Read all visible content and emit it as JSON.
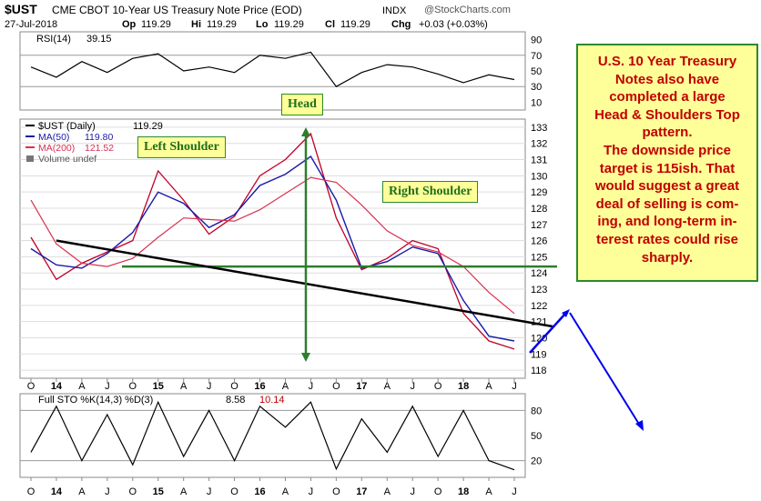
{
  "header": {
    "symbol": "$UST",
    "title": "CME CBOT 10-Year US Treasury Note Price (EOD)",
    "index": "INDX",
    "brand": "@StockCharts.com",
    "date": "27-Jul-2018",
    "op_label": "Op",
    "op": "119.29",
    "hi_label": "Hi",
    "hi": "119.29",
    "lo_label": "Lo",
    "lo": "119.29",
    "cl_label": "Cl",
    "cl": "119.29",
    "chg_label": "Chg",
    "chg": "+0.03 (+0.03%)"
  },
  "rsi_panel": {
    "label": "RSI(14)",
    "value": "39.15",
    "ticks": [
      "90",
      "70",
      "50",
      "30",
      "10"
    ]
  },
  "main_panel": {
    "legend_price": "$UST (Daily)",
    "legend_price_value": "119.29",
    "legend_ma50": "MA(50)",
    "legend_ma50_value": "119.80",
    "legend_ma200": "MA(200)",
    "legend_ma200_value": "121.52",
    "legend_volume": "Volume undef",
    "y_ticks": [
      "133",
      "132",
      "131",
      "130",
      "129",
      "128",
      "127",
      "126",
      "125",
      "124",
      "123",
      "122",
      "121",
      "120",
      "119",
      "118"
    ]
  },
  "sto_panel": {
    "label": "Full STO %K(14,3) %D(3)",
    "value_k": "8.58",
    "value_d": "10.14",
    "ticks": [
      "80",
      "50",
      "20"
    ]
  },
  "x_axis": [
    "O",
    "14",
    "A",
    "J",
    "O",
    "15",
    "A",
    "J",
    "O",
    "16",
    "A",
    "J",
    "O",
    "17",
    "A",
    "J",
    "O",
    "18",
    "A",
    "J"
  ],
  "annotations": {
    "head": "Head",
    "left_shoulder": "Left Shoulder",
    "right_shoulder": "Right Shoulder"
  },
  "note": {
    "lines": [
      "U.S. 10 Year Treasury",
      "Notes also have",
      "completed a large",
      "Head & Shoulders Top",
      "pattern.",
      "The downside price",
      "target is 115ish. That",
      "would suggest a great",
      "deal of selling is com-",
      "ing, and long-term in-",
      "terest rates could rise",
      "sharply."
    ]
  },
  "colors": {
    "price": "#c00028",
    "ma50": "#1a1aa8",
    "ma200": "#d83050",
    "neckline": "#000000",
    "support": "#2e7d2e",
    "head_arrow": "#2e7d2e",
    "projection": "#0000ee",
    "note_text": "#c00000",
    "label_bg": "#ffff99"
  },
  "chart_data": [
    {
      "type": "line",
      "title": "RSI(14)",
      "ylim": [
        0,
        100
      ],
      "gridlines": [
        30,
        70
      ],
      "last_value": 39.15,
      "x": [
        "2013-10",
        "2014-01",
        "2014-04",
        "2014-07",
        "2014-10",
        "2015-01",
        "2015-04",
        "2015-07",
        "2015-10",
        "2016-01",
        "2016-04",
        "2016-07",
        "2016-10",
        "2017-01",
        "2017-04",
        "2017-07",
        "2017-10",
        "2018-01",
        "2018-04",
        "2018-07"
      ],
      "values": [
        55,
        42,
        62,
        48,
        66,
        72,
        50,
        55,
        48,
        70,
        66,
        74,
        30,
        48,
        58,
        55,
        46,
        35,
        45,
        39
      ]
    },
    {
      "type": "line",
      "title": "$UST (Daily)",
      "ylim": [
        117.5,
        133.5
      ],
      "grid": true,
      "x": [
        "2013-10",
        "2014-01",
        "2014-04",
        "2014-07",
        "2014-10",
        "2015-01",
        "2015-04",
        "2015-07",
        "2015-10",
        "2016-01",
        "2016-04",
        "2016-07",
        "2016-10",
        "2017-01",
        "2017-04",
        "2017-07",
        "2017-10",
        "2018-01",
        "2018-04",
        "2018-07"
      ],
      "series": [
        {
          "name": "$UST (Daily)",
          "values": [
            126.2,
            123.6,
            124.6,
            125.3,
            126.0,
            130.3,
            128.5,
            126.4,
            127.5,
            130.0,
            131.0,
            132.6,
            127.4,
            124.2,
            124.9,
            126.0,
            125.5,
            121.5,
            119.8,
            119.3
          ]
        },
        {
          "name": "MA(50)",
          "values": [
            125.5,
            124.5,
            124.3,
            125.2,
            126.5,
            129.0,
            128.3,
            126.8,
            127.6,
            129.4,
            130.1,
            131.2,
            128.5,
            124.3,
            124.7,
            125.6,
            125.2,
            122.3,
            120.1,
            119.8
          ]
        },
        {
          "name": "MA(200)",
          "values": [
            128.5,
            125.8,
            124.6,
            124.4,
            124.9,
            126.2,
            127.4,
            127.3,
            127.2,
            127.9,
            128.9,
            129.9,
            129.6,
            128.2,
            126.6,
            125.7,
            125.3,
            124.4,
            122.8,
            121.5
          ]
        }
      ],
      "annotations": [
        "Head",
        "Left Shoulder",
        "Right Shoulder"
      ],
      "support_level": 124.4,
      "neckline": [
        {
          "x": "2014-01",
          "y": 126.0
        },
        {
          "x": "2018-07",
          "y": 120.7
        }
      ]
    },
    {
      "type": "line",
      "title": "Full STO %K(14,3) %D(3)",
      "ylim": [
        0,
        100
      ],
      "gridlines": [
        20,
        80
      ],
      "last_values": {
        "%K": 8.58,
        "%D": 10.14
      },
      "x": [
        "2013-10",
        "2014-01",
        "2014-04",
        "2014-07",
        "2014-10",
        "2015-01",
        "2015-04",
        "2015-07",
        "2015-10",
        "2016-01",
        "2016-04",
        "2016-07",
        "2016-10",
        "2017-01",
        "2017-04",
        "2017-07",
        "2017-10",
        "2018-01",
        "2018-04",
        "2018-07"
      ],
      "values": [
        30,
        85,
        20,
        75,
        15,
        90,
        25,
        80,
        20,
        85,
        60,
        90,
        10,
        70,
        30,
        85,
        25,
        80,
        20,
        9
      ]
    }
  ]
}
